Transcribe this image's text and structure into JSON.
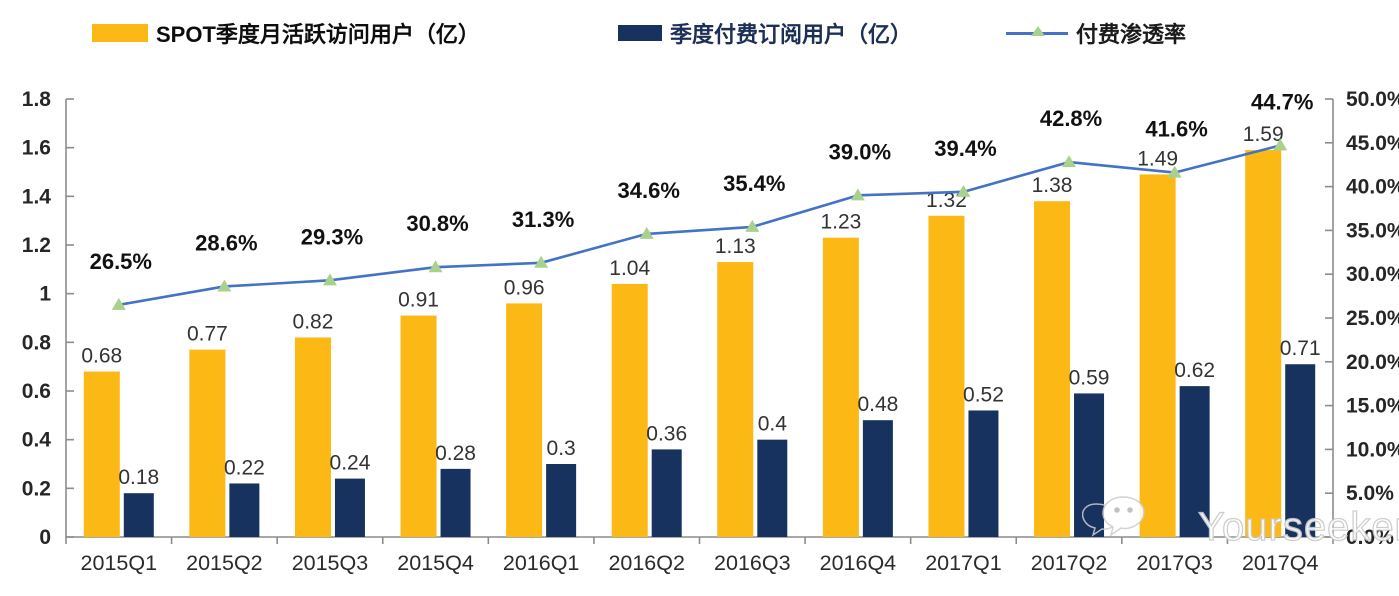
{
  "legend": {
    "mau_label": "SPOT季度月活跃访问用户（亿）",
    "subs_label": "季度付费订阅用户（亿）",
    "penetration_label": "付费渗透率"
  },
  "watermark": {
    "text": "Yourseeker",
    "icon": "wechat-icon"
  },
  "colors": {
    "mau_bar": "#FCB814",
    "subs_bar": "#17325E",
    "penetration_line": "#4472C4",
    "penetration_marker": "#A9D18E",
    "axis": "#8C8C8C",
    "tick_text": "#262626",
    "value_text": "#333333",
    "pct_text": "#111111"
  },
  "chart_data": {
    "type": "bar",
    "title": "",
    "xlabel": "",
    "ylabel": "",
    "grid": false,
    "legend_position": "top",
    "categories": [
      "2015Q1",
      "2015Q2",
      "2015Q3",
      "2015Q4",
      "2016Q1",
      "2016Q2",
      "2016Q3",
      "2016Q4",
      "2017Q1",
      "2017Q2",
      "2017Q3",
      "2017Q4"
    ],
    "series": [
      {
        "name": "SPOT季度月活跃访问用户（亿）",
        "type": "bar",
        "values": [
          0.68,
          0.77,
          0.82,
          0.91,
          0.96,
          1.04,
          1.13,
          1.23,
          1.32,
          1.38,
          1.49,
          1.59
        ],
        "labels": [
          "0.68",
          "0.77",
          "0.82",
          "0.91",
          "0.96",
          "1.04",
          "1.13",
          "1.23",
          "1.32",
          "1.38",
          "1.49",
          "1.59"
        ],
        "axis": "left"
      },
      {
        "name": "季度付费订阅用户（亿）",
        "type": "bar",
        "values": [
          0.18,
          0.22,
          0.24,
          0.28,
          0.3,
          0.36,
          0.4,
          0.48,
          0.52,
          0.59,
          0.62,
          0.71
        ],
        "labels": [
          "0.18",
          "0.22",
          "0.24",
          "0.28",
          "0.3",
          "0.36",
          "0.4",
          "0.48",
          "0.52",
          "0.59",
          "0.62",
          "0.71"
        ],
        "axis": "left"
      },
      {
        "name": "付费渗透率",
        "type": "line",
        "values": [
          26.5,
          28.6,
          29.3,
          30.8,
          31.3,
          34.6,
          35.4,
          39.0,
          39.4,
          42.8,
          41.6,
          44.7
        ],
        "labels": [
          "26.5%",
          "28.6%",
          "29.3%",
          "30.8%",
          "31.3%",
          "34.6%",
          "35.4%",
          "39.0%",
          "39.4%",
          "42.8%",
          "41.6%",
          "44.7%"
        ],
        "axis": "right"
      }
    ],
    "left_axis": {
      "min": 0,
      "max": 1.8,
      "step": 0.2,
      "ticks": [
        "0",
        "0.2",
        "0.4",
        "0.6",
        "0.8",
        "1",
        "1.2",
        "1.4",
        "1.6",
        "1.8"
      ]
    },
    "right_axis": {
      "min": 0,
      "max": 50,
      "step": 5,
      "ticks": [
        "0.0%",
        "5.0%",
        "10.0%",
        "15.0%",
        "20.0%",
        "25.0%",
        "30.0%",
        "35.0%",
        "40.0%",
        "45.0%",
        "50.0%"
      ]
    }
  }
}
